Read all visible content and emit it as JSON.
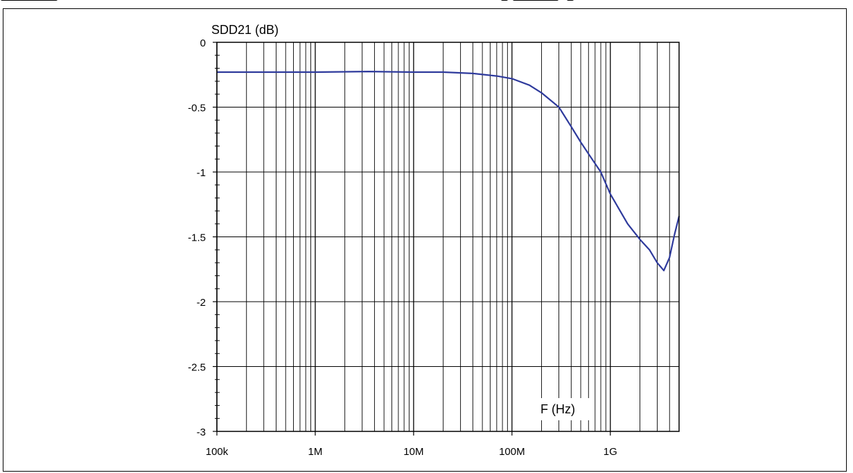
{
  "chart_data": {
    "type": "line",
    "ylabel": "SDD21 (dB)",
    "xlabel": "F (Hz)",
    "x_scale": "log",
    "xlim": [
      100000,
      5000000000
    ],
    "ylim": [
      -3,
      0
    ],
    "grid": true,
    "x_ticks": [
      {
        "value": 100000,
        "label": "100k"
      },
      {
        "value": 1000000,
        "label": "1M"
      },
      {
        "value": 10000000,
        "label": "10M"
      },
      {
        "value": 100000000,
        "label": "100M"
      },
      {
        "value": 1000000000,
        "label": "1G"
      }
    ],
    "y_ticks": [
      {
        "value": 0,
        "label": "0"
      },
      {
        "value": -0.5,
        "label": "-0.5"
      },
      {
        "value": -1,
        "label": "-1"
      },
      {
        "value": -1.5,
        "label": "-1.5"
      },
      {
        "value": -2,
        "label": "-2"
      },
      {
        "value": -2.5,
        "label": "-2.5"
      },
      {
        "value": -3,
        "label": "-3"
      }
    ],
    "series": [
      {
        "color": "#2e3a9c",
        "x": [
          100000,
          1000000,
          3500000,
          10000000,
          20000000,
          40000000,
          70000000,
          100000000,
          150000000,
          200000000,
          300000000,
          400000000,
          500000000,
          600000000,
          800000000,
          1000000000,
          1500000000,
          2000000000,
          2500000000,
          3000000000,
          3500000000,
          4000000000,
          4500000000,
          5000000000
        ],
        "y": [
          -0.23,
          -0.23,
          -0.225,
          -0.23,
          -0.23,
          -0.24,
          -0.26,
          -0.28,
          -0.33,
          -0.39,
          -0.5,
          -0.65,
          -0.77,
          -0.86,
          -1.0,
          -1.17,
          -1.4,
          -1.52,
          -1.6,
          -1.7,
          -1.76,
          -1.66,
          -1.48,
          -1.34
        ]
      }
    ]
  }
}
